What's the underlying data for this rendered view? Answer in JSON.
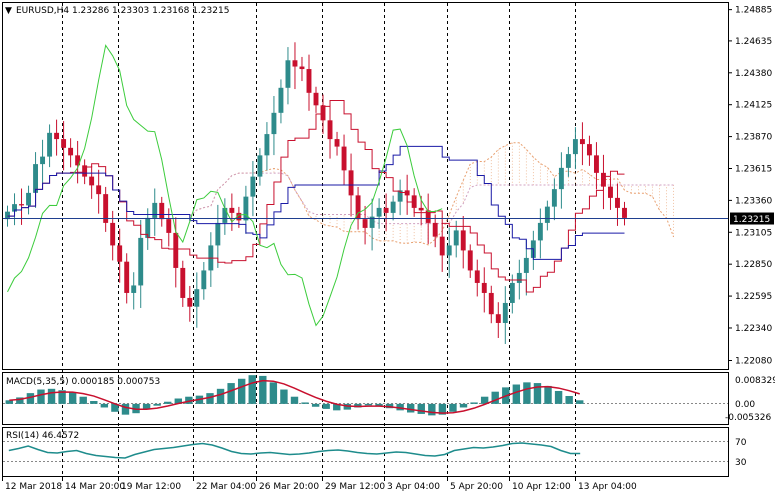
{
  "main_title": "EURUSD,H4  1.23286 1.23303 1.23168 1.23215",
  "title_arrow": "▼",
  "current_price": "1.23215",
  "price_ticks": [
    "1.24885",
    "1.24635",
    "1.24380",
    "1.24125",
    "1.23870",
    "1.23615",
    "1.23360",
    "1.23105",
    "1.22850",
    "1.22595",
    "1.22340",
    "1.22080"
  ],
  "price_range": [
    1.2202,
    1.2493
  ],
  "macd_title": "MACD(5,35,5) 0.000185 0.000753",
  "macd_ticks": [
    "0.008329",
    "0.00",
    "-0.005326"
  ],
  "rsi_title": "RSI(14) 46.4572",
  "rsi_ticks": [
    "70",
    "30"
  ],
  "time_labels": [
    "12 Mar 2018",
    "14 Mar 20:00",
    "19 Mar 12:00",
    "22 Mar 04:00",
    "26 Mar 20:00",
    "29 Mar 12:00",
    "3 Apr 04:00",
    "5 Apr 20:00",
    "10 Apr 12:00",
    "13 Apr 04:00"
  ],
  "colors": {
    "bull": "#2e8b8b",
    "bear": "#c8102e",
    "tenkan": "#c8102e",
    "kijun": "#1a1aa6",
    "chikou": "#3ccc3c",
    "cloud": "#e8a070",
    "macd_bar": "#2e8b8b",
    "macd_signal": "#c8102e",
    "rsi": "#1e8c8c",
    "price_line": "#1f3f8f"
  },
  "chart_data": {
    "type": "candlestick",
    "symbol": "EURUSD",
    "timeframe": "H4",
    "closes": [
      1.2327,
      1.2333,
      1.2332,
      1.2342,
      1.2365,
      1.2371,
      1.239,
      1.2385,
      1.2378,
      1.2372,
      1.2364,
      1.2355,
      1.2348,
      1.2341,
      1.2318,
      1.23,
      1.2287,
      1.2262,
      1.2268,
      1.2306,
      1.2322,
      1.2334,
      1.2321,
      1.231,
      1.2282,
      1.2258,
      1.2251,
      1.2265,
      1.228,
      1.23,
      1.2318,
      1.233,
      1.2326,
      1.232,
      1.2339,
      1.2355,
      1.2372,
      1.2389,
      1.2406,
      1.2426,
      1.2448,
      1.2443,
      1.2441,
      1.2422,
      1.2412,
      1.24,
      1.2385,
      1.2379,
      1.236,
      1.234,
      1.2321,
      1.2314,
      1.2323,
      1.233,
      1.2326,
      1.2335,
      1.2344,
      1.234,
      1.233,
      1.2328,
      1.2318,
      1.2307,
      1.2292,
      1.23,
      1.2312,
      1.2296,
      1.228,
      1.227,
      1.2262,
      1.2245,
      1.2238,
      1.2254,
      1.227,
      1.2278,
      1.229,
      1.2304,
      1.2318,
      1.2331,
      1.2345,
      1.2362,
      1.2373,
      1.2385,
      1.2381,
      1.2372,
      1.2358,
      1.2347,
      1.2338,
      1.233,
      1.2322
    ],
    "macd_values": [
      0.001,
      0.0018,
      0.003,
      0.004,
      0.0042,
      0.0038,
      0.0032,
      0.002,
      0.0008,
      -0.001,
      -0.0022,
      -0.003,
      -0.0026,
      -0.0015,
      -0.0005,
      0.0006,
      0.0015,
      0.002,
      0.0023,
      0.003,
      0.0042,
      0.0058,
      0.007,
      0.008,
      0.0078,
      0.006,
      0.004,
      0.002,
      0.0004,
      -0.0008,
      -0.0014,
      -0.0018,
      -0.0016,
      -0.001,
      -0.0004,
      -0.0006,
      -0.0012,
      -0.0018,
      -0.0024,
      -0.0028,
      -0.0032,
      -0.003,
      -0.0022,
      -0.001,
      0.0004,
      0.002,
      0.0034,
      0.0046,
      0.0054,
      0.006,
      0.0058,
      0.005,
      0.0036,
      0.0022,
      0.001
    ],
    "rsi_values": [
      52,
      56,
      61,
      54,
      48,
      47,
      50,
      52,
      46,
      42,
      40,
      38,
      37,
      44,
      49,
      54,
      56,
      58,
      61,
      64,
      66,
      63,
      57,
      50,
      46,
      45,
      47,
      48,
      46,
      44,
      45,
      47,
      50,
      52,
      53,
      51,
      48,
      46,
      45,
      47,
      49,
      48,
      45,
      42,
      41,
      44,
      52,
      55,
      58,
      57,
      59,
      62,
      66,
      67,
      65,
      63,
      60,
      52,
      46,
      46
    ],
    "current": 1.23215
  }
}
